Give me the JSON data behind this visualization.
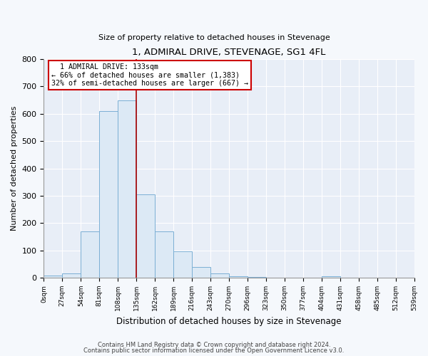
{
  "title": "1, ADMIRAL DRIVE, STEVENAGE, SG1 4FL",
  "subtitle": "Size of property relative to detached houses in Stevenage",
  "xlabel": "Distribution of detached houses by size in Stevenage",
  "ylabel": "Number of detached properties",
  "bar_edges": [
    0,
    27,
    54,
    81,
    108,
    135,
    162,
    189,
    216,
    243,
    270,
    297,
    324,
    351,
    378,
    405,
    432,
    459,
    486,
    513,
    540
  ],
  "bar_heights": [
    8,
    15,
    170,
    610,
    650,
    305,
    170,
    97,
    40,
    15,
    5,
    2,
    0,
    0,
    0,
    5,
    0,
    0,
    0,
    0
  ],
  "bar_color": "#dce9f5",
  "bar_edge_color": "#7bafd4",
  "vline_x": 135,
  "vline_color": "#aa0000",
  "annotation_line1": "1 ADMIRAL DRIVE: 133sqm",
  "annotation_line2": "← 66% of detached houses are smaller (1,383)",
  "annotation_line3": "32% of semi-detached houses are larger (667) →",
  "annotation_box_edge_color": "#cc0000",
  "tick_labels": [
    "0sqm",
    "27sqm",
    "54sqm",
    "81sqm",
    "108sqm",
    "135sqm",
    "162sqm",
    "189sqm",
    "216sqm",
    "243sqm",
    "270sqm",
    "296sqm",
    "323sqm",
    "350sqm",
    "377sqm",
    "404sqm",
    "431sqm",
    "458sqm",
    "485sqm",
    "512sqm",
    "539sqm"
  ],
  "ylim": [
    0,
    800
  ],
  "yticks": [
    0,
    100,
    200,
    300,
    400,
    500,
    600,
    700,
    800
  ],
  "footer_line1": "Contains HM Land Registry data © Crown copyright and database right 2024.",
  "footer_line2": "Contains public sector information licensed under the Open Government Licence v3.0.",
  "plot_bg_color": "#e8eef7",
  "fig_bg_color": "#f5f8fc",
  "grid_color": "#ffffff",
  "figsize": [
    6.0,
    5.0
  ],
  "dpi": 100
}
